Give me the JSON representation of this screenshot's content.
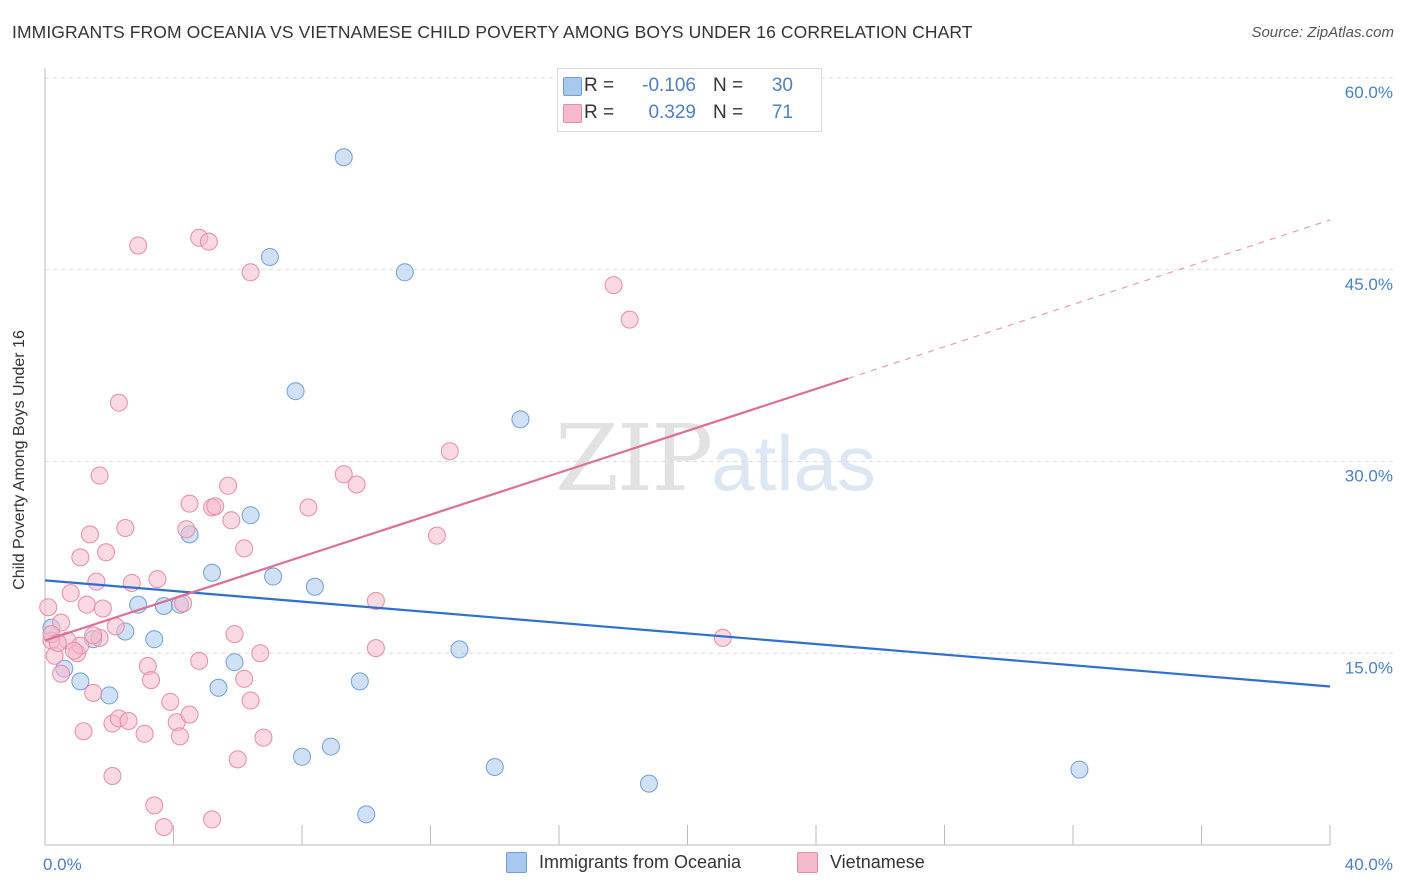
{
  "title": "IMMIGRANTS FROM OCEANIA VS VIETNAMESE CHILD POVERTY AMONG BOYS UNDER 16 CORRELATION CHART",
  "source": "Source: ZipAtlas.com",
  "watermark": {
    "zip": "ZIP",
    "atlas": "atlas"
  },
  "legend": {
    "rows": [
      {
        "r_label": "R =",
        "r_value": "-0.106",
        "n_label": "N =",
        "n_value": "30",
        "color": "#a9c8ef"
      },
      {
        "r_label": "R =",
        "r_value": "0.329",
        "n_label": "N =",
        "n_value": "71",
        "color": "#f6b9cb"
      }
    ]
  },
  "bottom_legend": [
    {
      "label": "Immigrants from Oceania",
      "color": "#a9c8ef"
    },
    {
      "label": "Vietnamese",
      "color": "#f6b9cb"
    }
  ],
  "chart_data": {
    "type": "scatter",
    "title": "IMMIGRANTS FROM OCEANIA VS VIETNAMESE CHILD POVERTY AMONG BOYS UNDER 16 CORRELATION CHART",
    "xlabel": "",
    "ylabel": "Child Poverty Among Boys Under 16",
    "xlim": [
      0,
      40
    ],
    "ylim": [
      0,
      60
    ],
    "x_tick_labels": [
      "0.0%",
      "40.0%"
    ],
    "y_ticks": [
      {
        "value": 15,
        "label": "15.0%"
      },
      {
        "value": 30,
        "label": "30.0%"
      },
      {
        "value": 45,
        "label": "45.0%"
      },
      {
        "value": 60,
        "label": "60.0%"
      }
    ],
    "grid": true,
    "legend_position": "top-center",
    "series": [
      {
        "name": "Immigrants from Oceania",
        "color": "#a9c8ef",
        "stroke": "#6f9fd8",
        "trend_color": "#2f6fcf",
        "trend": {
          "x0": 0,
          "y0": 20.7,
          "x1": 40,
          "y1": 12.4
        },
        "points": [
          [
            0.2,
            17.0
          ],
          [
            0.6,
            13.8
          ],
          [
            1.1,
            12.8
          ],
          [
            1.5,
            16.1
          ],
          [
            2.0,
            11.7
          ],
          [
            2.5,
            16.7
          ],
          [
            2.9,
            18.8
          ],
          [
            3.4,
            16.1
          ],
          [
            3.7,
            18.7
          ],
          [
            4.2,
            18.8
          ],
          [
            4.5,
            24.3
          ],
          [
            5.2,
            21.3
          ],
          [
            5.4,
            12.3
          ],
          [
            5.9,
            14.3
          ],
          [
            6.4,
            25.8
          ],
          [
            7.0,
            46.0
          ],
          [
            7.1,
            21.0
          ],
          [
            7.8,
            35.5
          ],
          [
            8.0,
            6.9
          ],
          [
            8.4,
            20.2
          ],
          [
            8.9,
            7.7
          ],
          [
            9.3,
            53.8
          ],
          [
            9.8,
            12.8
          ],
          [
            10.0,
            2.4
          ],
          [
            11.2,
            44.8
          ],
          [
            12.9,
            15.3
          ],
          [
            14.0,
            6.1
          ],
          [
            14.8,
            33.3
          ],
          [
            18.8,
            4.8
          ],
          [
            32.2,
            5.9
          ]
        ]
      },
      {
        "name": "Vietnamese",
        "color": "#f6b9cb",
        "stroke": "#e88aa6",
        "trend_color": "#e06d93",
        "trend": {
          "x0": 0,
          "y0": 16.0,
          "x1": 25.0,
          "y1": 36.5
        },
        "trend_dashed": {
          "x0": 25.0,
          "y0": 36.5,
          "x1": 40,
          "y1": 48.9
        },
        "points": [
          [
            0.1,
            18.6
          ],
          [
            0.2,
            16.0
          ],
          [
            0.3,
            14.8
          ],
          [
            0.5,
            13.4
          ],
          [
            0.5,
            17.4
          ],
          [
            0.7,
            16.0
          ],
          [
            0.8,
            19.7
          ],
          [
            1.0,
            15.0
          ],
          [
            1.1,
            15.6
          ],
          [
            1.1,
            22.5
          ],
          [
            1.2,
            8.9
          ],
          [
            1.3,
            18.8
          ],
          [
            1.4,
            24.3
          ],
          [
            1.5,
            11.9
          ],
          [
            1.6,
            20.6
          ],
          [
            1.7,
            16.2
          ],
          [
            1.7,
            28.9
          ],
          [
            1.8,
            18.5
          ],
          [
            1.9,
            22.9
          ],
          [
            2.1,
            5.4
          ],
          [
            2.1,
            9.5
          ],
          [
            2.2,
            17.1
          ],
          [
            2.3,
            9.9
          ],
          [
            2.3,
            34.6
          ],
          [
            2.5,
            24.8
          ],
          [
            2.6,
            9.7
          ],
          [
            2.7,
            20.5
          ],
          [
            2.9,
            46.9
          ],
          [
            3.1,
            8.7
          ],
          [
            3.2,
            14.0
          ],
          [
            3.3,
            12.9
          ],
          [
            3.4,
            3.1
          ],
          [
            3.5,
            20.8
          ],
          [
            3.7,
            1.4
          ],
          [
            3.9,
            11.2
          ],
          [
            4.1,
            9.6
          ],
          [
            4.2,
            8.5
          ],
          [
            4.3,
            18.9
          ],
          [
            4.4,
            24.7
          ],
          [
            4.5,
            10.2
          ],
          [
            4.5,
            26.7
          ],
          [
            4.8,
            47.5
          ],
          [
            4.8,
            14.4
          ],
          [
            5.1,
            47.2
          ],
          [
            5.2,
            26.4
          ],
          [
            5.2,
            2.0
          ],
          [
            5.3,
            26.5
          ],
          [
            5.7,
            28.1
          ],
          [
            5.8,
            25.4
          ],
          [
            5.9,
            16.5
          ],
          [
            6.0,
            6.7
          ],
          [
            6.2,
            13.0
          ],
          [
            6.2,
            23.2
          ],
          [
            6.4,
            44.8
          ],
          [
            6.4,
            11.3
          ],
          [
            6.7,
            15.0
          ],
          [
            6.8,
            8.4
          ],
          [
            8.2,
            26.4
          ],
          [
            9.3,
            29.0
          ],
          [
            9.7,
            28.2
          ],
          [
            10.3,
            19.1
          ],
          [
            10.3,
            15.4
          ],
          [
            12.2,
            24.2
          ],
          [
            12.6,
            30.8
          ],
          [
            17.7,
            43.8
          ],
          [
            18.2,
            41.1
          ],
          [
            21.1,
            16.2
          ],
          [
            0.2,
            16.5
          ],
          [
            0.4,
            15.8
          ],
          [
            1.5,
            16.4
          ],
          [
            0.9,
            15.2
          ]
        ]
      }
    ]
  }
}
